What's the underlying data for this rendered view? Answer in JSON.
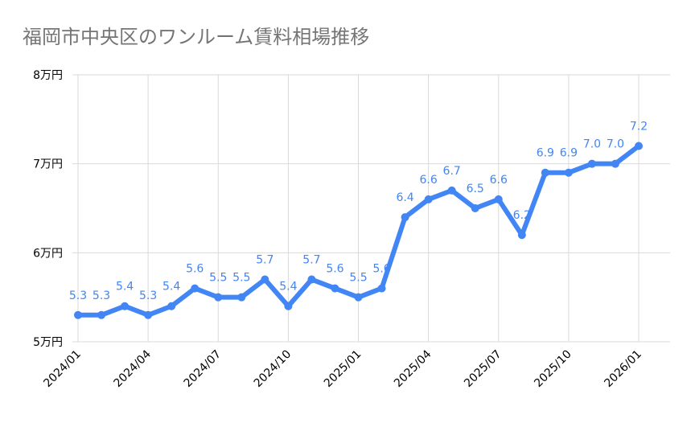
{
  "chart_data": {
    "type": "line",
    "title": "福岡市中央区のワンルーム賃料相場推移",
    "categories": [
      "2024/01",
      null,
      null,
      "2024/04",
      null,
      null,
      "2024/07",
      null,
      null,
      "2024/10",
      null,
      null,
      "2025/01",
      null,
      null,
      "2025/04",
      null,
      null,
      "2025/07",
      null,
      null,
      "2025/10",
      null,
      null,
      "2026/01"
    ],
    "values": [
      5.3,
      5.3,
      5.4,
      5.3,
      5.4,
      5.6,
      5.5,
      5.5,
      5.7,
      5.4,
      5.7,
      5.6,
      5.5,
      5.6,
      6.4,
      6.6,
      6.7,
      6.5,
      6.6,
      6.2,
      6.9,
      6.9,
      7.0,
      7.0,
      7.2
    ],
    "value_labels": [
      "5.3",
      "5.3",
      "5.4",
      "5.3",
      "5.4",
      "5.6",
      "5.5",
      "5.5",
      "5.7",
      "5.4",
      "5.7",
      "5.6",
      "5.5",
      "5.6",
      "6.4",
      "6.6",
      "6.7",
      "6.5",
      "6.6",
      "6.2",
      "6.9",
      "6.9",
      "7.0",
      "7.0",
      "7.2"
    ],
    "color": "#4285f4",
    "ylim": [
      5,
      8
    ],
    "yticks": [
      {
        "value": 5,
        "label": "5万円"
      },
      {
        "value": 6,
        "label": "6万円"
      },
      {
        "value": 7,
        "label": "7万円"
      },
      {
        "value": 8,
        "label": "8万円"
      }
    ],
    "grid": true
  }
}
